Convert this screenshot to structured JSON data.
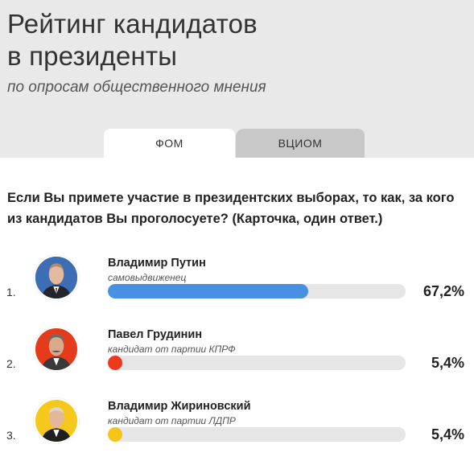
{
  "header": {
    "title_line1": "Рейтинг кандидатов",
    "title_line2": "в президенты",
    "subtitle": "по опросам общественного мнения"
  },
  "tabs": [
    {
      "label": "ФОМ",
      "active": true
    },
    {
      "label": "ВЦИОМ",
      "active": false
    }
  ],
  "question": "Если Вы примете участие в президентских выборах, то как, за кого из кандидатов Вы проголосуете? (Карточка, один ответ.)",
  "candidates": [
    {
      "rank": "1.",
      "name": "Владимир Путин",
      "party": "самовыдвиженец",
      "percent": "67,2%",
      "value": 67.2,
      "color": "#4a90e2",
      "icon": "putin-portrait"
    },
    {
      "rank": "2.",
      "name": "Павел Грудинин",
      "party": "кандидат от партии КПРФ",
      "percent": "5,4%",
      "value": 5.4,
      "color": "#ee3a1c",
      "icon": "grudinin-portrait"
    },
    {
      "rank": "3.",
      "name": "Владимир Жириновский",
      "party": "кандидат от партии ЛДПР",
      "percent": "5,4%",
      "value": 5.4,
      "color": "#f5c518",
      "icon": "zhirinovsky-portrait"
    }
  ],
  "colors": {
    "header_bg": "#e9e9e9",
    "tab_inactive": "#c8c8c8",
    "track": "#e6e6e6"
  }
}
